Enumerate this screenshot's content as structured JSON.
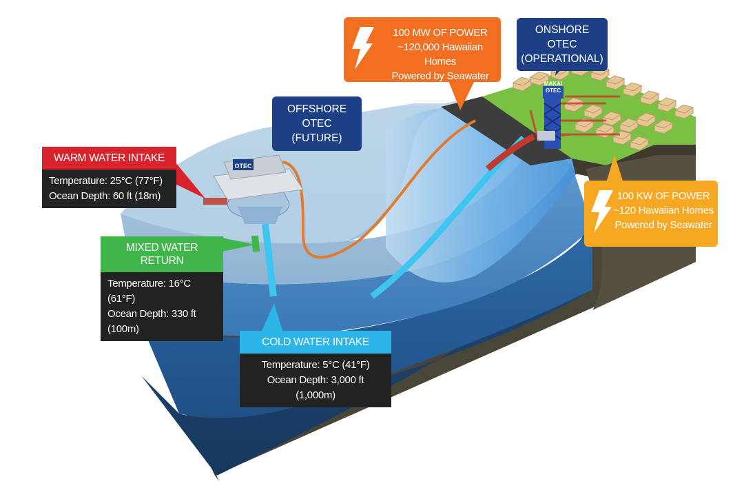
{
  "labels": {
    "warm": {
      "title": "WARM WATER INTAKE",
      "lines": [
        "Temperature: 25°C (77°F)",
        "Ocean Depth: 60 ft (18m)"
      ],
      "color": "#d8222c"
    },
    "mixed": {
      "title": "MIXED WATER RETURN",
      "lines": [
        "Temperature: 16°C (61°F)",
        "Ocean Depth: 330 ft (100m)"
      ],
      "color": "#3fb54a"
    },
    "cold": {
      "title": "COLD WATER INTAKE",
      "lines": [
        "Temperature: 5°C (41°F)",
        "Ocean Depth: 3,000 ft (1,000m)"
      ],
      "color": "#2cb5e8"
    },
    "power100mw": {
      "lines": [
        "100 MW OF POWER",
        "~120,000 Hawaiian Homes",
        "Powered by Seawater"
      ],
      "color": "#f26f21"
    },
    "power100kw": {
      "lines": [
        "100 KW OF POWER",
        "~120 Hawaiian Homes",
        "Powered by Seawater"
      ],
      "color": "#f7a823"
    },
    "offshore": {
      "lines": [
        "OFFSHORE OTEC",
        "(FUTURE)"
      ],
      "color": "#1c3f86"
    },
    "onshore": {
      "lines": [
        "ONSHORE OTEC",
        "(OPERATIONAL)"
      ],
      "color": "#1c3f86"
    }
  },
  "platform_sign": "OTEC",
  "tower_sign": [
    "MAKAI",
    "OTEC"
  ],
  "icons": [
    "lightning-bolt-icon",
    "lightning-bolt-icon"
  ],
  "colors": {
    "ocean_surface": "#a6c7df",
    "ocean_mid": "#3d7fbf",
    "ocean_deep": "#1e4d7e",
    "seabed": "#4a4637",
    "land_grass": "#7ac143",
    "cold_pipe": "#3fc6f0",
    "warm_pipe": "#c23a2e",
    "cable": "#e27b2e"
  }
}
